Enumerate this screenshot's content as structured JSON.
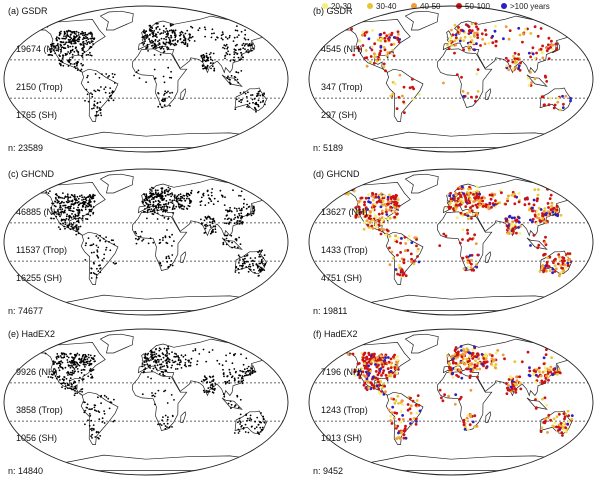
{
  "legend": [
    {
      "label": "20-30",
      "color": "#f3f07a"
    },
    {
      "label": "30-40",
      "color": "#e7c533"
    },
    {
      "label": "40-50",
      "color": "#f09a3a"
    },
    {
      "label": "50-100",
      "color": "#cc1212"
    },
    {
      "label": ">100 years",
      "color": "#2a1fc4"
    }
  ],
  "panels": [
    {
      "title": "(a) GSDR",
      "nh": "19674 (NH)",
      "trop": "2150 (Trop)",
      "sh": "1765 (SH)",
      "n": "n: 23589",
      "kind": "all",
      "density": 0.9
    },
    {
      "title": "(b) GSDR",
      "nh": "4545 (NH)",
      "trop": "347 (Trop)",
      "sh": "297 (SH)",
      "n": "n: 5189",
      "kind": "length",
      "density": 0.35
    },
    {
      "title": "(c) GHCND",
      "nh": "46885 (NH)",
      "trop": "11537 (Trop)",
      "sh": "16255 (SH)",
      "n": "n: 74677",
      "kind": "all",
      "density": 1.0
    },
    {
      "title": "(d) GHCND",
      "nh": "13627 (NH)",
      "trop": "1433 (Trop)",
      "sh": "4751 (SH)",
      "n": "n: 19811",
      "kind": "length",
      "density": 0.8
    },
    {
      "title": "(e) HadEX2",
      "nh": "9926 (NH)",
      "trop": "3858 (Trop)",
      "sh": "1056 (SH)",
      "n": "n: 14840",
      "kind": "all",
      "density": 0.8
    },
    {
      "title": "(f) HadEX2",
      "nh": "7196 (NH)",
      "trop": "1243 (Trop)",
      "sh": "1013 (SH)",
      "n": "n: 9452",
      "kind": "length",
      "density": 0.75
    }
  ]
}
